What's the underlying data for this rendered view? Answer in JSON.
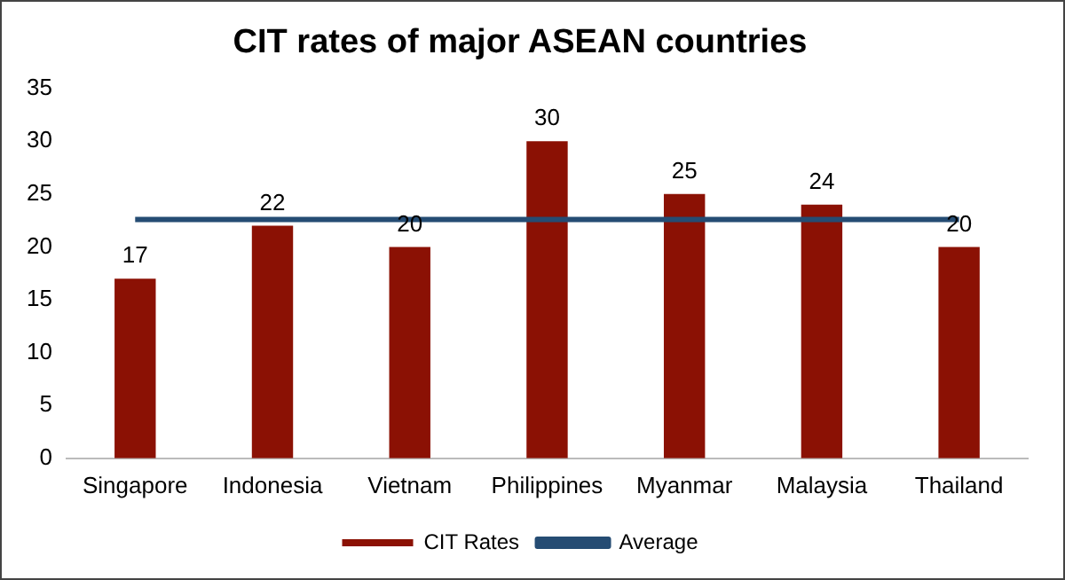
{
  "chart_data": {
    "type": "bar",
    "title": "CIT rates of major ASEAN countries",
    "categories": [
      "Singapore",
      "Indonesia",
      "Vietnam",
      "Philippines",
      "Myanmar",
      "Malaysia",
      "Thailand"
    ],
    "series": [
      {
        "name": "CIT Rates",
        "color": "#8b1104",
        "values": [
          17,
          22,
          20,
          30,
          25,
          24,
          20
        ],
        "value_labels": [
          "17",
          "22",
          "20",
          "30",
          "25",
          "24",
          "20"
        ]
      },
      {
        "name": "Average",
        "type": "line",
        "color": "#254c73",
        "values": [
          22.6,
          22.6,
          22.6,
          22.6,
          22.6,
          22.6,
          22.6
        ]
      }
    ],
    "ylim": [
      0,
      35
    ],
    "yticks": [
      0,
      5,
      10,
      15,
      20,
      25,
      30,
      35
    ],
    "grid": false,
    "legend": "bottom",
    "marker": "none"
  }
}
